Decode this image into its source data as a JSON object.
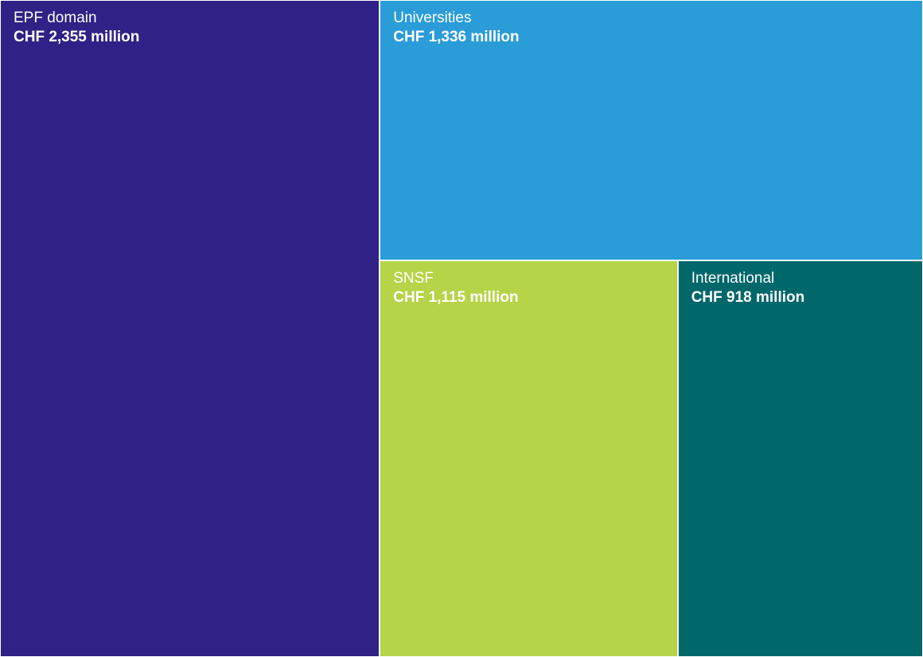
{
  "chart_data": {
    "type": "treemap",
    "unit": "CHF million",
    "items": [
      {
        "label": "EPF domain",
        "value": 2355,
        "value_label": "CHF 2,355 million",
        "color": "#2F2185"
      },
      {
        "label": "Universities",
        "value": 1336,
        "value_label": "CHF 1,336 million",
        "color": "#2A9CD7"
      },
      {
        "label": "SNSF",
        "value": 1115,
        "value_label": "CHF 1,115 million",
        "color": "#B5D447"
      },
      {
        "label": "International",
        "value": 918,
        "value_label": "CHF 918 million",
        "color": "#00676A"
      }
    ]
  }
}
